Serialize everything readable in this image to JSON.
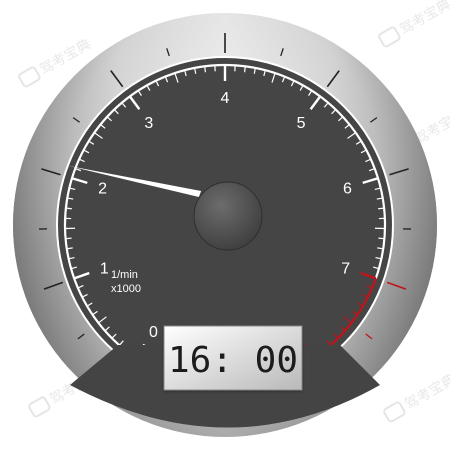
{
  "gauge": {
    "scale_labels": [
      "0",
      "1",
      "2",
      "3",
      "4",
      "5",
      "6",
      "7"
    ],
    "unit_line1": "1/min",
    "unit_line2": "x1000",
    "needle_value": 2.1,
    "scale_max": 8,
    "redline_from": 7,
    "colors": {
      "dial_face": "#454545",
      "bezel_light": "#f2f2f2",
      "bezel_dark": "#6e6e6e",
      "ticks": "#ffffff",
      "outer_ticks": "#222222",
      "redline": "#c0141a",
      "needle": "#ffffff",
      "hub": "#5a5a5a",
      "bottom_panel": "#444444"
    }
  },
  "clock": {
    "time": "16: 00"
  },
  "watermark": {
    "text": "驾考宝典",
    "icon": "car-logo-icon"
  }
}
